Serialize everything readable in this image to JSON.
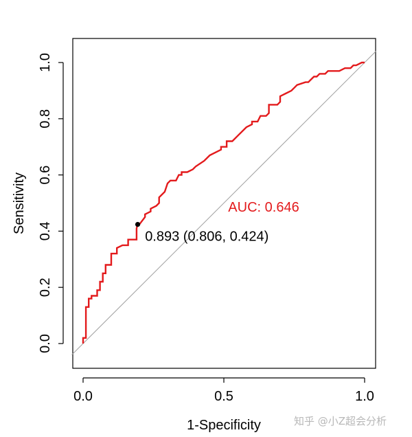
{
  "chart_data": {
    "type": "line",
    "title": "",
    "xlabel": "1-Specificity",
    "ylabel": "Sensitivity",
    "xlim": [
      0.0,
      1.0
    ],
    "ylim": [
      0.0,
      1.0
    ],
    "x_ticks": [
      0.0,
      0.5,
      1.0
    ],
    "x_tick_labels": [
      "0.0",
      "0.5",
      "1.0"
    ],
    "y_ticks": [
      0.0,
      0.2,
      0.4,
      0.6,
      0.8,
      1.0
    ],
    "y_tick_labels": [
      "0.0",
      "0.2",
      "0.4",
      "0.6",
      "0.8",
      "1.0"
    ],
    "grid": false,
    "series": [
      {
        "name": "ROC curve",
        "color": "#e31a1c",
        "x": [
          0.0,
          0.0,
          0.01,
          0.01,
          0.02,
          0.02,
          0.03,
          0.03,
          0.05,
          0.05,
          0.06,
          0.06,
          0.07,
          0.07,
          0.08,
          0.08,
          0.1,
          0.1,
          0.12,
          0.12,
          0.14,
          0.16,
          0.16,
          0.19,
          0.19,
          0.194,
          0.2,
          0.22,
          0.22,
          0.24,
          0.24,
          0.26,
          0.27,
          0.27,
          0.29,
          0.3,
          0.31,
          0.33,
          0.34,
          0.35,
          0.35,
          0.37,
          0.39,
          0.4,
          0.43,
          0.45,
          0.49,
          0.49,
          0.51,
          0.51,
          0.53,
          0.55,
          0.58,
          0.6,
          0.6,
          0.62,
          0.63,
          0.65,
          0.66,
          0.66,
          0.69,
          0.7,
          0.7,
          0.72,
          0.74,
          0.75,
          0.76,
          0.79,
          0.8,
          0.81,
          0.82,
          0.83,
          0.84,
          0.86,
          0.87,
          0.88,
          0.89,
          0.9,
          0.91,
          0.93,
          0.95,
          0.96,
          0.97,
          0.99,
          1.0
        ],
        "y": [
          0.0,
          0.02,
          0.02,
          0.13,
          0.13,
          0.16,
          0.16,
          0.17,
          0.17,
          0.19,
          0.19,
          0.22,
          0.22,
          0.25,
          0.25,
          0.28,
          0.28,
          0.32,
          0.32,
          0.34,
          0.35,
          0.35,
          0.37,
          0.37,
          0.41,
          0.424,
          0.424,
          0.45,
          0.46,
          0.47,
          0.48,
          0.49,
          0.5,
          0.52,
          0.54,
          0.57,
          0.58,
          0.58,
          0.6,
          0.6,
          0.61,
          0.61,
          0.62,
          0.63,
          0.65,
          0.67,
          0.69,
          0.7,
          0.7,
          0.72,
          0.72,
          0.74,
          0.77,
          0.78,
          0.79,
          0.79,
          0.81,
          0.81,
          0.82,
          0.85,
          0.85,
          0.86,
          0.88,
          0.89,
          0.9,
          0.91,
          0.92,
          0.93,
          0.93,
          0.94,
          0.95,
          0.95,
          0.96,
          0.96,
          0.97,
          0.97,
          0.97,
          0.97,
          0.97,
          0.98,
          0.98,
          0.99,
          0.99,
          1.0,
          1.0
        ]
      },
      {
        "name": "reference",
        "color": "#a0a0a0",
        "x": [
          -0.04,
          1.04
        ],
        "y": [
          -0.04,
          1.04
        ]
      }
    ],
    "best_threshold_point": {
      "x": 0.194,
      "y": 0.424,
      "color": "#000000"
    },
    "annotations": [
      {
        "text": "AUC: 0.646",
        "x": 0.5,
        "y": 0.47,
        "color": "#e31a1c"
      },
      {
        "text": "0.893 (0.806, 0.424)",
        "x": 0.22,
        "y": 0.39,
        "color": "#000000"
      }
    ]
  },
  "watermark": "知乎 @小Z超会分析"
}
